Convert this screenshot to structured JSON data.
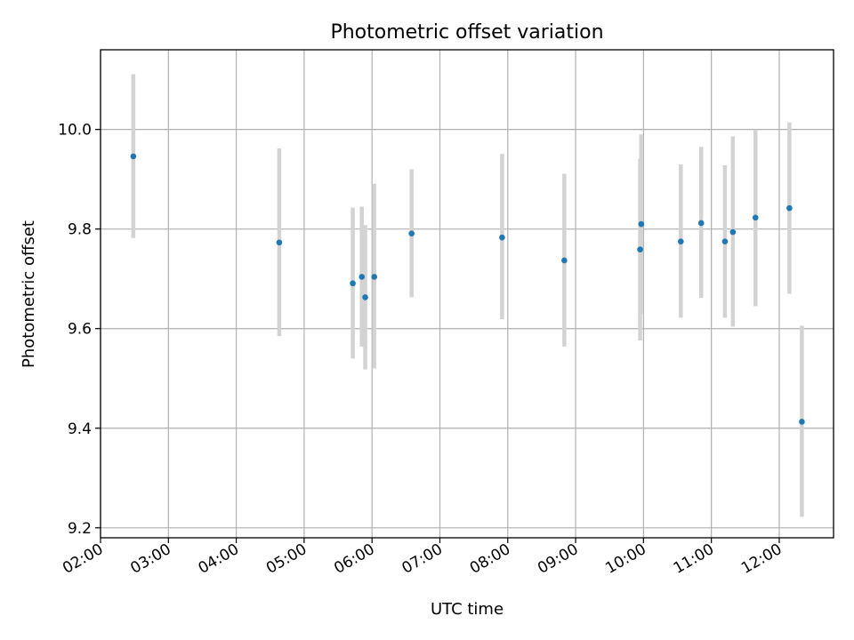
{
  "chart_data": {
    "type": "scatter",
    "title": "Photometric offset variation",
    "xlabel": "UTC time",
    "ylabel": "Photometric offset",
    "xlim": [
      "02:00",
      "12:48"
    ],
    "ylim": [
      9.18,
      10.16
    ],
    "grid": true,
    "x_ticks": [
      "02:00",
      "03:00",
      "04:00",
      "05:00",
      "06:00",
      "07:00",
      "08:00",
      "09:00",
      "10:00",
      "11:00",
      "12:00"
    ],
    "y_ticks": [
      9.2,
      9.4,
      9.6,
      9.8,
      10.0
    ],
    "y_tick_labels": [
      "9.2",
      "9.4",
      "9.6",
      "9.8",
      "10.0"
    ],
    "colors": {
      "point": "#1f77b4",
      "errorbar": "#d3d3d3"
    },
    "series": [
      {
        "points": [
          {
            "x": "02:29",
            "y": 9.946,
            "ylo": 9.782,
            "yhi": 10.111
          },
          {
            "x": "04:38",
            "y": 9.773,
            "ylo": 9.585,
            "yhi": 9.962
          },
          {
            "x": "05:43",
            "y": 9.691,
            "ylo": 9.54,
            "yhi": 9.843
          },
          {
            "x": "05:51",
            "y": 9.704,
            "ylo": 9.564,
            "yhi": 9.845
          },
          {
            "x": "05:54",
            "y": 9.663,
            "ylo": 9.518,
            "yhi": 9.808
          },
          {
            "x": "06:02",
            "y": 9.704,
            "ylo": 9.52,
            "yhi": 9.891
          },
          {
            "x": "06:35",
            "y": 9.791,
            "ylo": 9.663,
            "yhi": 9.92
          },
          {
            "x": "07:55",
            "y": 9.783,
            "ylo": 9.619,
            "yhi": 9.951
          },
          {
            "x": "08:50",
            "y": 9.737,
            "ylo": 9.564,
            "yhi": 9.911
          },
          {
            "x": "09:57",
            "y": 9.759,
            "ylo": 9.576,
            "yhi": 9.941
          },
          {
            "x": "09:58",
            "y": 9.81,
            "ylo": 9.63,
            "yhi": 9.99
          },
          {
            "x": "10:33",
            "y": 9.775,
            "ylo": 9.622,
            "yhi": 9.93
          },
          {
            "x": "10:51",
            "y": 9.812,
            "ylo": 9.662,
            "yhi": 9.965
          },
          {
            "x": "11:12",
            "y": 9.775,
            "ylo": 9.622,
            "yhi": 9.928
          },
          {
            "x": "11:19",
            "y": 9.794,
            "ylo": 9.604,
            "yhi": 9.986
          },
          {
            "x": "11:39",
            "y": 9.823,
            "ylo": 9.645,
            "yhi": 10.0
          },
          {
            "x": "12:09",
            "y": 9.842,
            "ylo": 9.67,
            "yhi": 10.014
          },
          {
            "x": "12:20",
            "y": 9.413,
            "ylo": 9.222,
            "yhi": 9.606
          }
        ]
      }
    ]
  }
}
